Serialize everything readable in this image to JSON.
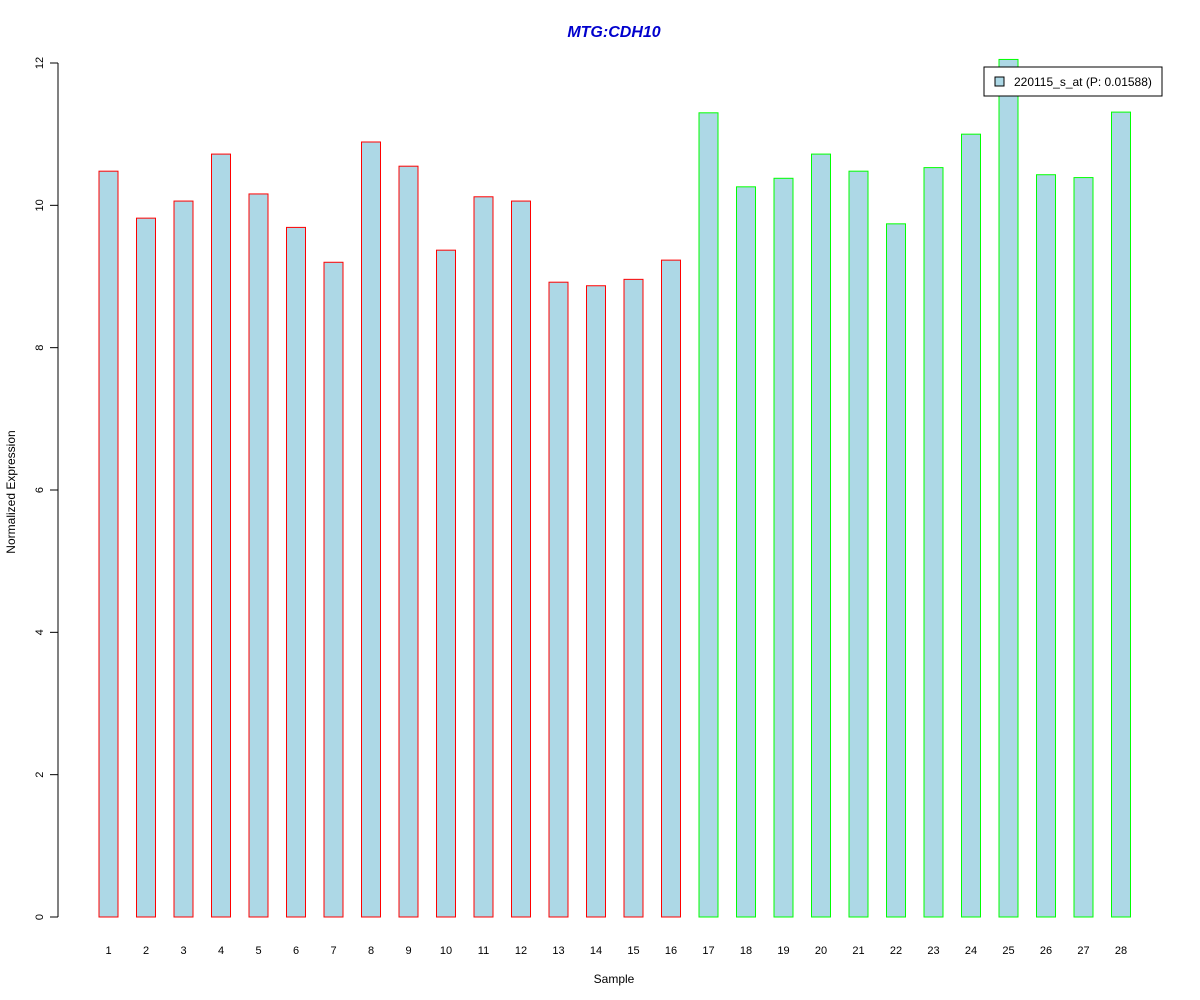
{
  "chart_data": {
    "type": "bar",
    "title": "MTG:CDH10",
    "xlabel": "Sample",
    "ylabel": "Normalized Expression",
    "ylim": [
      0,
      12
    ],
    "yticks": [
      0,
      2,
      4,
      6,
      8,
      10,
      12
    ],
    "categories": [
      "1",
      "2",
      "3",
      "4",
      "5",
      "6",
      "7",
      "8",
      "9",
      "10",
      "11",
      "12",
      "13",
      "14",
      "15",
      "16",
      "17",
      "18",
      "19",
      "20",
      "21",
      "22",
      "23",
      "24",
      "25",
      "26",
      "27",
      "28"
    ],
    "series": [
      {
        "name": "220115_s_at (P: 0.01588)",
        "values": [
          10.48,
          9.82,
          10.06,
          10.72,
          10.16,
          9.69,
          9.2,
          10.89,
          10.55,
          9.37,
          10.12,
          10.06,
          8.92,
          8.87,
          8.96,
          9.23,
          11.3,
          10.26,
          10.38,
          10.72,
          10.48,
          9.74,
          10.53,
          11.0,
          12.05,
          10.43,
          10.39,
          11.31
        ]
      }
    ],
    "group_border_colors": [
      "#ff0000",
      "#ff0000",
      "#ff0000",
      "#ff0000",
      "#ff0000",
      "#ff0000",
      "#ff0000",
      "#ff0000",
      "#ff0000",
      "#ff0000",
      "#ff0000",
      "#ff0000",
      "#ff0000",
      "#ff0000",
      "#ff0000",
      "#ff0000",
      "#00ff00",
      "#00ff00",
      "#00ff00",
      "#00ff00",
      "#00ff00",
      "#00ff00",
      "#00ff00",
      "#00ff00",
      "#00ff00",
      "#00ff00",
      "#00ff00",
      "#00ff00"
    ],
    "bar_fill": "#add8e6",
    "title_color": "#0000cd",
    "grid": false,
    "legend_position": "top-right"
  }
}
